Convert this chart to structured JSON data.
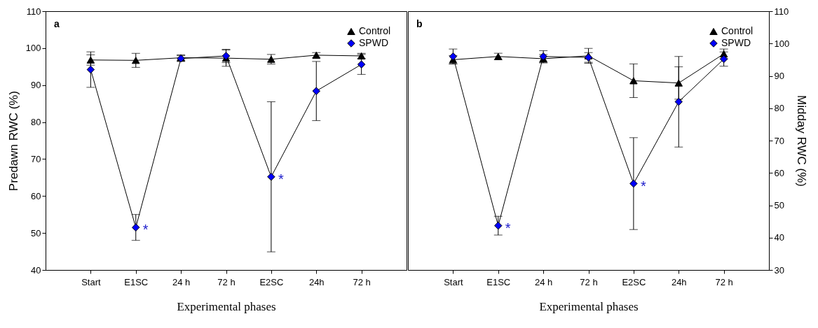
{
  "chart_data": [
    {
      "type": "line",
      "title": "a",
      "xlabel": "Experimental phases",
      "ylabel": "Predawn RWC (%)",
      "categories": [
        "Start",
        "E1SC",
        "24 h",
        "72 h",
        "E2SC",
        "24h",
        "72 h"
      ],
      "ylim": [
        40,
        110
      ],
      "yticks": [
        40,
        50,
        60,
        70,
        80,
        90,
        100,
        110
      ],
      "grid": false,
      "legend": "top right",
      "line_style": "solid",
      "series": [
        {
          "name": "Control",
          "color": "#000000",
          "marker": "triangle",
          "values": [
            96.8,
            96.7,
            97.4,
            97.3,
            97.0,
            98.1,
            97.9
          ],
          "errors": [
            1.4,
            1.9,
            0.8,
            2.2,
            1.3,
            0.7,
            0.7
          ]
        },
        {
          "name": "SPWD",
          "color": "#0000ff",
          "marker": "diamond",
          "values": [
            94.2,
            51.5,
            97.2,
            97.9,
            65.2,
            88.4,
            95.6
          ],
          "errors": [
            4.8,
            3.5,
            0.8,
            1.8,
            20.3,
            8.0,
            2.7
          ]
        }
      ],
      "annotations": [
        {
          "text": "*",
          "x": "E1SC",
          "y": 51.5
        },
        {
          "text": "*",
          "x": "E2SC",
          "y": 65.2
        }
      ]
    },
    {
      "type": "line",
      "title": "b",
      "xlabel": "Experimental phases",
      "ylabel": "Midday RWC (%)",
      "categories": [
        "Start",
        "E1SC",
        "24 h",
        "72 h",
        "E2SC",
        "24h",
        "72 h"
      ],
      "ylim": [
        30,
        110
      ],
      "yticks": [
        30,
        40,
        50,
        60,
        70,
        80,
        90,
        100,
        110
      ],
      "grid": false,
      "legend": "top right",
      "line_style": "solid",
      "series": [
        {
          "name": "Control",
          "color": "#000000",
          "marker": "triangle",
          "values": [
            95.0,
            96.0,
            95.3,
            96.2,
            88.5,
            87.8,
            96.8
          ],
          "errors": [
            1.3,
            1.0,
            1.3,
            2.3,
            5.2,
            5.0,
            1.5
          ]
        },
        {
          "name": "SPWD",
          "color": "#0000ff",
          "marker": "diamond",
          "values": [
            96.0,
            43.7,
            96.0,
            95.7,
            56.7,
            82.0,
            95.2
          ],
          "errors": [
            2.3,
            2.9,
            1.8,
            1.5,
            14.2,
            14.0,
            2.2
          ]
        }
      ],
      "annotations": [
        {
          "text": "*",
          "x": "E1SC",
          "y": 43.7
        },
        {
          "text": "*",
          "x": "E2SC",
          "y": 56.7
        }
      ]
    }
  ]
}
